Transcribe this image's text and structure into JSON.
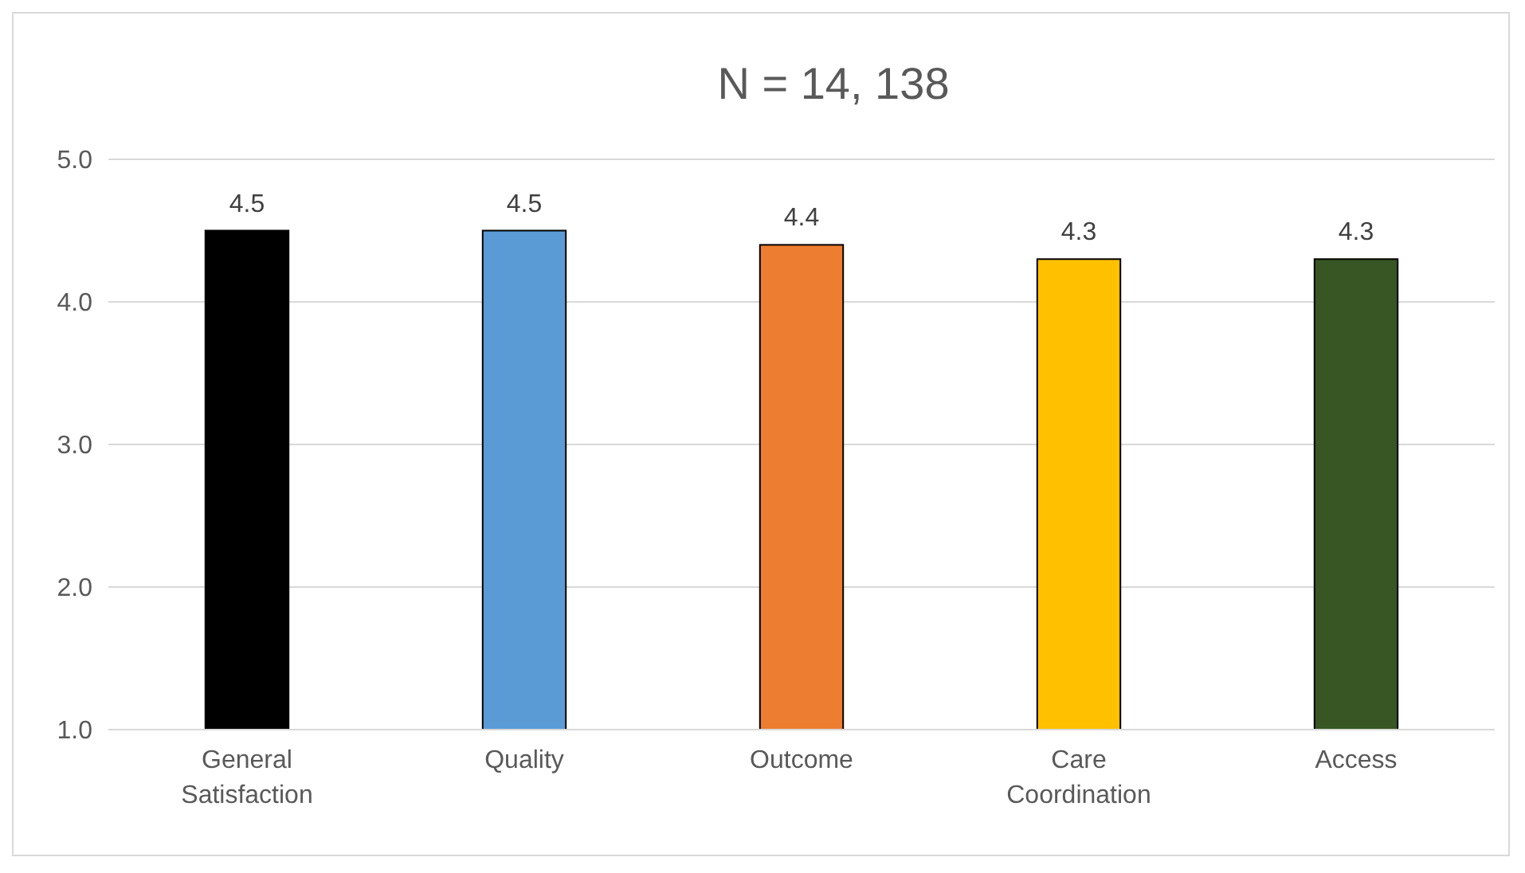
{
  "chart_data": {
    "type": "bar",
    "title": "N = 14, 138",
    "categories": [
      "General Satisfaction",
      "Quality",
      "Outcome",
      "Care Coordination",
      "Access"
    ],
    "values": [
      4.5,
      4.5,
      4.4,
      4.3,
      4.3
    ],
    "colors": [
      "#000000",
      "#5b9bd5",
      "#ed7d31",
      "#ffc000",
      "#375623"
    ],
    "ylim": [
      1,
      5
    ],
    "yticks": [
      {
        "value": 1,
        "label": "1.0"
      },
      {
        "value": 2,
        "label": "2.0"
      },
      {
        "value": 3,
        "label": "3.0"
      },
      {
        "value": 4,
        "label": "4.0"
      },
      {
        "value": 5,
        "label": "5.0"
      }
    ],
    "grid": "y",
    "data_labels": true
  }
}
